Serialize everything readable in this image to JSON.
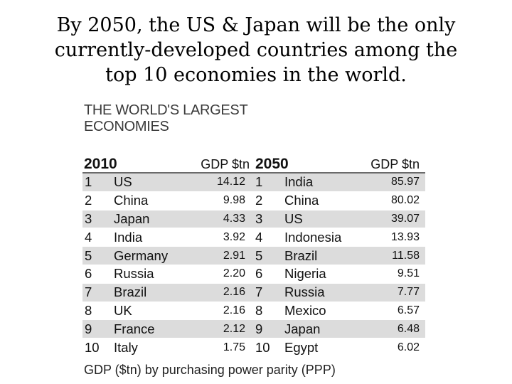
{
  "headline": {
    "line1": "By 2050, the US & Japan will be the only",
    "line2": "currently-developed countries among the",
    "line3": "top 10 economies in the world."
  },
  "figure": {
    "title_line1": "THE WORLD'S LARGEST",
    "title_line2": "ECONOMIES",
    "left_header": {
      "year": "2010",
      "gdp": "GDP $tn"
    },
    "right_header": {
      "year": "2050",
      "gdp": "GDP $tn"
    },
    "rows_2010": [
      {
        "rank": "1",
        "country": "US",
        "gdp": "14.12"
      },
      {
        "rank": "2",
        "country": "China",
        "gdp": "9.98"
      },
      {
        "rank": "3",
        "country": "Japan",
        "gdp": "4.33"
      },
      {
        "rank": "4",
        "country": "India",
        "gdp": "3.92"
      },
      {
        "rank": "5",
        "country": "Germany",
        "gdp": "2.91"
      },
      {
        "rank": "6",
        "country": "Russia",
        "gdp": "2.20"
      },
      {
        "rank": "7",
        "country": "Brazil",
        "gdp": "2.16"
      },
      {
        "rank": "8",
        "country": "UK",
        "gdp": "2.16"
      },
      {
        "rank": "9",
        "country": "France",
        "gdp": "2.12"
      },
      {
        "rank": "10",
        "country": "Italy",
        "gdp": "1.75"
      }
    ],
    "rows_2050": [
      {
        "rank": "1",
        "country": "India",
        "gdp": "85.97"
      },
      {
        "rank": "2",
        "country": "China",
        "gdp": "80.02"
      },
      {
        "rank": "3",
        "country": "US",
        "gdp": "39.07"
      },
      {
        "rank": "4",
        "country": "Indonesia",
        "gdp": "13.93"
      },
      {
        "rank": "5",
        "country": "Brazil",
        "gdp": "11.58"
      },
      {
        "rank": "6",
        "country": "Nigeria",
        "gdp": "9.51"
      },
      {
        "rank": "7",
        "country": "Russia",
        "gdp": "7.77"
      },
      {
        "rank": "8",
        "country": "Mexico",
        "gdp": "6.57"
      },
      {
        "rank": "9",
        "country": "Japan",
        "gdp": "6.48"
      },
      {
        "rank": "10",
        "country": "Egypt",
        "gdp": "6.02"
      }
    ],
    "footnote": "GDP ($tn) by purchasing power parity (PPP)"
  }
}
